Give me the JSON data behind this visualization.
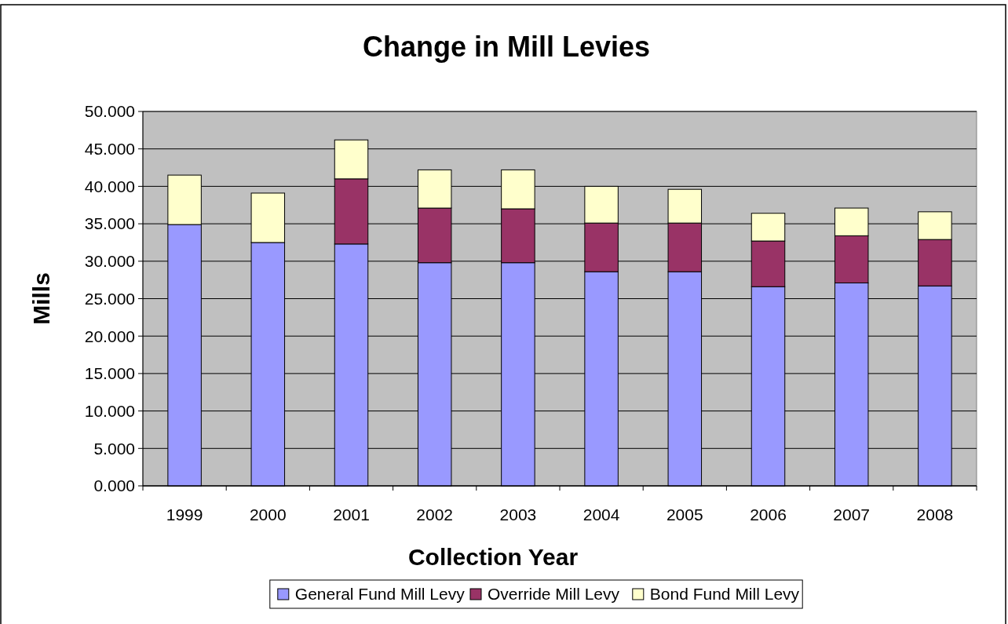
{
  "chart_data": {
    "type": "bar",
    "title": "Change in Mill Levies",
    "xlabel": "Collection Year",
    "ylabel": "Mills",
    "stacked": true,
    "categories": [
      "1999",
      "2000",
      "2001",
      "2002",
      "2003",
      "2004",
      "2005",
      "2006",
      "2007",
      "2008"
    ],
    "series": [
      {
        "name": "General Fund Mill Levy",
        "color": "#9999ff",
        "values": [
          34.9,
          32.5,
          32.3,
          29.8,
          29.8,
          28.6,
          28.6,
          26.6,
          27.1,
          26.7
        ]
      },
      {
        "name": "Override Mill Levy",
        "color": "#993366",
        "values": [
          0,
          0,
          8.7,
          7.3,
          7.2,
          6.5,
          6.5,
          6.1,
          6.3,
          6.2
        ]
      },
      {
        "name": "Bond Fund Mill Levy",
        "color": "#ffffcc",
        "values": [
          6.6,
          6.6,
          5.2,
          5.1,
          5.2,
          4.9,
          4.5,
          3.7,
          3.7,
          3.7
        ]
      }
    ],
    "ylim": [
      0,
      50
    ],
    "yticks": [
      {
        "value": 0,
        "label": "0.000"
      },
      {
        "value": 5,
        "label": "5.000"
      },
      {
        "value": 10,
        "label": "10.000"
      },
      {
        "value": 15,
        "label": "15.000"
      },
      {
        "value": 20,
        "label": "20.000"
      },
      {
        "value": 25,
        "label": "25.000"
      },
      {
        "value": 30,
        "label": "30.000"
      },
      {
        "value": 35,
        "label": "35.000"
      },
      {
        "value": 40,
        "label": "40.000"
      },
      {
        "value": 45,
        "label": "45.000"
      },
      {
        "value": 50,
        "label": "50.000"
      }
    ],
    "grid": "y",
    "legend": "bottom"
  }
}
